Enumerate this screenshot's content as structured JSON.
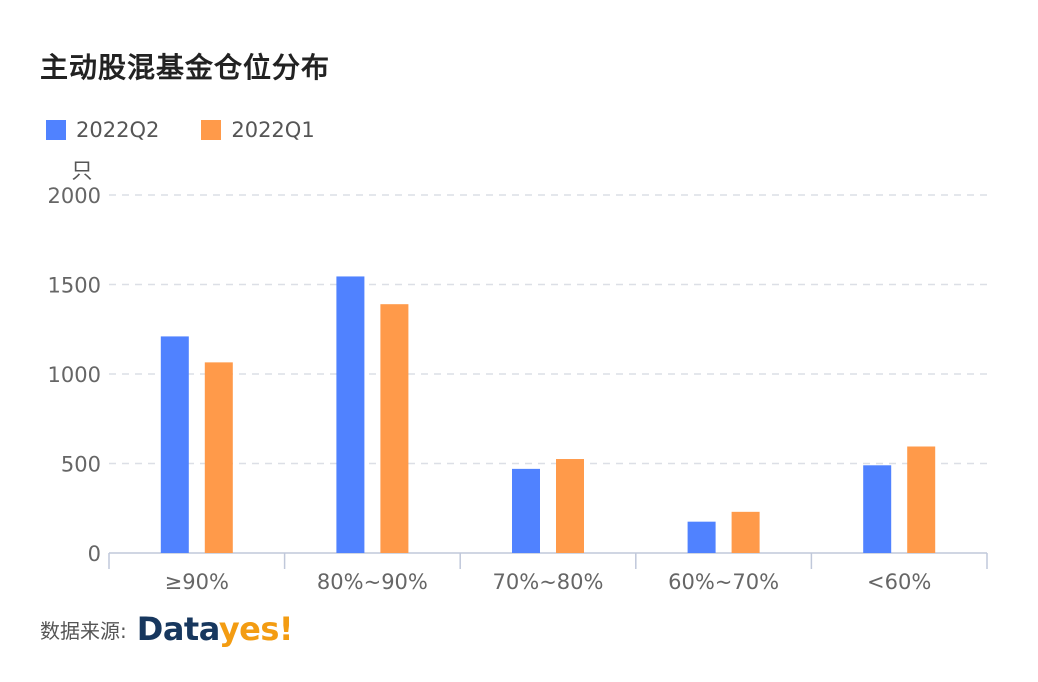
{
  "title": "主动股混基金仓位分布",
  "legend": [
    {
      "name": "2022Q2",
      "color": "#5082ff"
    },
    {
      "name": "2022Q1",
      "color": "#ff9a4a"
    }
  ],
  "source": {
    "label": "数据来源:",
    "logo_main": "Data",
    "logo_accent": "yes!"
  },
  "chart_data": {
    "type": "bar",
    "title": "主动股混基金仓位分布",
    "xlabel": "",
    "ylabel": "只",
    "ylim": [
      0,
      2000
    ],
    "yticks": [
      0,
      500,
      1000,
      1500,
      2000
    ],
    "grid": true,
    "legend_position": "top-left",
    "categories": [
      "≥90%",
      "80%~90%",
      "70%~80%",
      "60%~70%",
      "<60%"
    ],
    "series": [
      {
        "name": "2022Q2",
        "color": "#5082ff",
        "values": [
          1210,
          1545,
          470,
          175,
          490
        ]
      },
      {
        "name": "2022Q1",
        "color": "#ff9a4a",
        "values": [
          1065,
          1390,
          525,
          230,
          595
        ]
      }
    ]
  }
}
